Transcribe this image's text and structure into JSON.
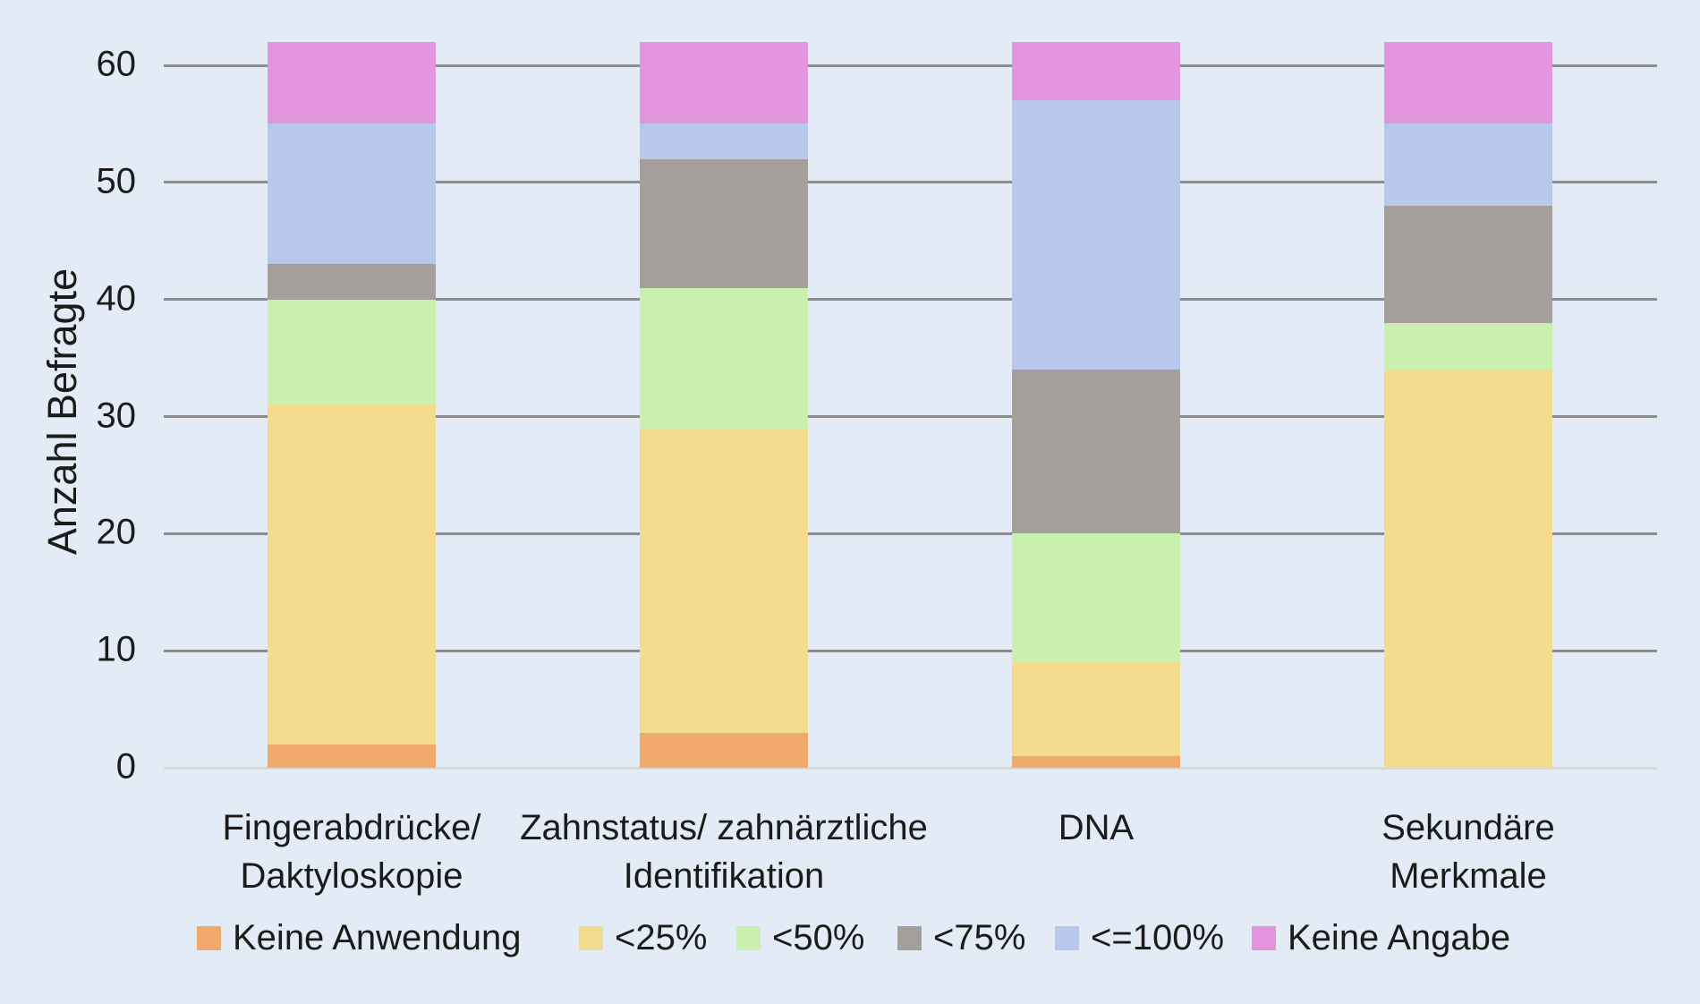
{
  "chart_data": {
    "type": "bar",
    "stacked": true,
    "title": "",
    "ylabel": "Anzahl Befragte",
    "xlabel": "",
    "ylim": [
      0,
      62
    ],
    "yticks": [
      0,
      10,
      20,
      30,
      40,
      50,
      60
    ],
    "grid": true,
    "legend_position": "bottom",
    "categories": [
      "Fingerabdrücke/\nDaktyloskopie",
      "Zahnstatus/ zahnärztliche\nIdentifikation",
      "DNA",
      "Sekundäre Merkmale"
    ],
    "series": [
      {
        "name": "Keine Anwendung",
        "color": "#f2a96c",
        "values": [
          2,
          3,
          1,
          0
        ]
      },
      {
        "name": "<25%",
        "color": "#f3dc8d",
        "values": [
          29,
          26,
          8,
          34
        ]
      },
      {
        "name": "<50%",
        "color": "#c9f0ae",
        "values": [
          9,
          12,
          11,
          4
        ]
      },
      {
        "name": "<75%",
        "color": "#a49f9b",
        "values": [
          3,
          11,
          14,
          10
        ]
      },
      {
        "name": "<=100%",
        "color": "#b9c8ea",
        "values": [
          12,
          3,
          23,
          7
        ]
      },
      {
        "name": "Keine Angabe",
        "color": "#e294dd",
        "values": [
          7,
          7,
          5,
          7
        ]
      }
    ],
    "colors": {
      "background": "#e3ecf6",
      "gridline": "#8d8d8d",
      "axis_line": "#dbdad2",
      "text": "#1b1b1b"
    }
  }
}
